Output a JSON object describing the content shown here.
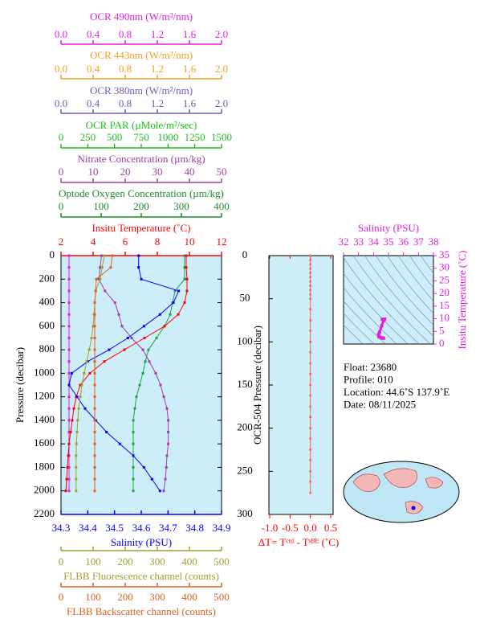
{
  "chart_data": [
    {
      "type": "profile",
      "ylabel": "Pressure (decibar)",
      "ylim": [
        0,
        2200
      ],
      "yticks": [
        0,
        200,
        400,
        600,
        800,
        1000,
        1200,
        1400,
        1600,
        1800,
        2000,
        2200
      ],
      "top_axes": [
        {
          "label": "OCR 490nm (W/m²/nm)",
          "color": "#e020e0",
          "xlim": [
            0,
            2
          ],
          "xticks": [
            {
              "value": 0,
              "label": "0.0"
            },
            0.4,
            0.8,
            1.2,
            1.6,
            {
              "value": 2,
              "label": "2.0"
            }
          ],
          "series": [
            {
              "color": "#e020e0",
              "y": [
                0,
                100,
                200,
                300,
                400,
                500,
                600,
                700,
                800,
                900,
                1000,
                1100,
                1200,
                1300,
                1400,
                1500,
                1600,
                1700,
                1800,
                1900,
                2000
              ],
              "x": [
                0.1,
                0.1,
                0.1,
                0.1,
                0.1,
                0.1,
                0.1,
                0.1,
                0.1,
                0.1,
                0.1,
                0.1,
                0.1,
                0.1,
                0.1,
                0.1,
                0.1,
                0.1,
                0.1,
                0.1,
                0.1
              ]
            }
          ]
        },
        {
          "label": "OCR 443nm (W/m²/nm)",
          "color": "#f0a020",
          "xlim": [
            0,
            2
          ],
          "xticks": [
            {
              "value": 0,
              "label": "0.0"
            },
            0.4,
            0.8,
            1.2,
            1.6,
            {
              "value": 2,
              "label": "2.0"
            }
          ]
        },
        {
          "label": "OCR 380nm (W/m²/nm)",
          "color": "#6060c0",
          "xlim": [
            0,
            2
          ],
          "xticks": [
            {
              "value": 0,
              "label": "0.0"
            },
            0.4,
            0.8,
            1.2,
            1.6,
            {
              "value": 2,
              "label": "2.0"
            }
          ]
        },
        {
          "label": "OCR PAR (µMole/m²/sec)",
          "color": "#20c020",
          "xlim": [
            0,
            1500
          ],
          "xticks": [
            0,
            250,
            500,
            750,
            1000,
            1250,
            1500
          ]
        },
        {
          "label": "Nitrate Concentration (µm/kg)",
          "color": "#a040a0",
          "xlim": [
            0,
            50
          ],
          "xticks": [
            0,
            10,
            20,
            30,
            40,
            50
          ],
          "series": [
            {
              "color": "#a040a0",
              "y": [
                0,
                100,
                200,
                300,
                400,
                500,
                600,
                700,
                800,
                900,
                1000,
                1100,
                1200,
                1300,
                1400,
                1500,
                1600,
                1700,
                1800,
                1900,
                2000
              ],
              "x": [
                12.6,
                12.2,
                11.8,
                13.7,
                16.8,
                18,
                19,
                22,
                25.5,
                27.5,
                29.5,
                31,
                32,
                33,
                33.4,
                33.4,
                33.4,
                33,
                32.8,
                32.5,
                32
              ]
            }
          ]
        },
        {
          "label": "Optode Oxygen Concentration (µm/kg)",
          "color": "#208a30",
          "xlim": [
            0,
            400
          ],
          "xticks": [
            0,
            100,
            200,
            300,
            400
          ],
          "series": [
            {
              "color": "#20a040",
              "y": [
                0,
                100,
                200,
                300,
                400,
                500,
                600,
                700,
                800,
                900,
                1000,
                1100,
                1200,
                1300,
                1400,
                1500,
                1600,
                1700,
                1800,
                1900,
                2000
              ],
              "x": [
                308,
                308,
                308,
                284,
                278,
                272,
                258,
                238,
                218,
                210,
                204,
                196,
                188,
                184,
                180,
                180,
                180,
                180,
                180,
                180,
                180
              ]
            }
          ]
        },
        {
          "label": "Insitu Temperature (˚C)",
          "color": "#ff0000",
          "xlim": [
            2,
            12
          ],
          "xticks": [
            2,
            4,
            6,
            8,
            10,
            12
          ],
          "series": [
            {
              "color": "#ff0000",
              "y": [
                0,
                100,
                200,
                300,
                400,
                500,
                600,
                700,
                800,
                900,
                1000,
                1100,
                1200,
                1300,
                1400,
                1500,
                1600,
                1700,
                1800,
                1900,
                2000
              ],
              "x": [
                9.8,
                9.8,
                9.85,
                9.85,
                9.7,
                9.3,
                8.45,
                7.2,
                5.95,
                4.7,
                3.8,
                3.2,
                2.95,
                2.8,
                2.7,
                2.6,
                2.5,
                2.45,
                2.4,
                2.35,
                2.3
              ]
            }
          ]
        }
      ],
      "bottom_axes": [
        {
          "label": "Salinity (PSU)",
          "color": "#0000ff",
          "xlim": [
            34.3,
            34.9
          ],
          "xticks": [
            34.3,
            34.4,
            34.5,
            34.6,
            34.7,
            34.8,
            34.9
          ],
          "series": [
            {
              "color": "#0000ff",
              "y": [
                0,
                100,
                200,
                300,
                400,
                500,
                600,
                700,
                800,
                900,
                1000,
                1100,
                1200,
                1300,
                1400,
                1500,
                1600,
                1700,
                1800,
                1900,
                2000
              ],
              "x": [
                34.59,
                34.59,
                34.6,
                34.74,
                34.72,
                34.67,
                34.61,
                34.55,
                34.48,
                34.4,
                34.34,
                34.33,
                34.36,
                34.39,
                34.43,
                34.47,
                34.52,
                34.57,
                34.61,
                34.64,
                34.67
              ]
            }
          ]
        },
        {
          "label": "FLBB Fluorescence channel (counts)",
          "color": "#a0a030",
          "xlim": [
            0,
            500
          ],
          "xticks": [
            0,
            100,
            200,
            300,
            400,
            500
          ],
          "series": [
            {
              "color": "#a0a030",
              "y": [
                0,
                100,
                200,
                300,
                400,
                500,
                600,
                700,
                800,
                900,
                1000,
                1100,
                1200,
                1300,
                1400,
                1500,
                1600,
                1700,
                1800,
                1900,
                2000
              ],
              "x": [
                135,
                128,
                122,
                108,
                105,
                103,
                100,
                95,
                88,
                80,
                72,
                65,
                60,
                55,
                52,
                50,
                48,
                47,
                47,
                47,
                47
              ]
            }
          ]
        },
        {
          "label": "FLBB Backscatter channel (counts)",
          "color": "#e06020",
          "xlim": [
            0,
            500
          ],
          "xticks": [
            0,
            100,
            200,
            300,
            400,
            500
          ],
          "series": [
            {
              "color": "#e06020",
              "y": [
                0,
                100,
                200,
                300,
                400,
                500,
                600,
                700,
                800,
                900,
                1000,
                1100,
                1200,
                1300,
                1400,
                1500,
                1600,
                1700,
                1800,
                1900,
                2000
              ],
              "x": [
                160,
                155,
                110,
                108,
                105,
                105,
                105,
                105,
                105,
                105,
                105,
                105,
                105,
                105,
                105,
                105,
                105,
                105,
                105,
                105,
                105
              ]
            }
          ]
        }
      ]
    },
    {
      "type": "delta",
      "xlabel": "ΔT= Tᶜᵗᵈ - Tˢᴮᴱ (˚C)",
      "ylabel": "OCR-504 Pressure (decibar)",
      "color": "#ff0000",
      "xlim": [
        -1,
        0.5
      ],
      "xticks": [
        {
          "value": -1,
          "label": "-1.0"
        },
        -0.5,
        {
          "value": 0,
          "label": "0.0"
        },
        0.5
      ],
      "ylim": [
        0,
        300
      ],
      "yticks": [
        0,
        50,
        100,
        150,
        200,
        250,
        300
      ],
      "series": [
        {
          "color": "#ff6060",
          "y": [
            0,
            5,
            10,
            15,
            20,
            25,
            30,
            35,
            40,
            45,
            50,
            62,
            75,
            87,
            100,
            112,
            125,
            137,
            150,
            162,
            175,
            187,
            200,
            212,
            225,
            237,
            250,
            262,
            275
          ],
          "x": [
            0,
            0,
            0,
            0,
            0,
            0,
            0,
            0,
            0,
            0,
            0,
            0,
            0,
            0,
            0,
            0,
            0,
            0,
            0,
            0,
            0,
            0,
            0,
            0,
            0,
            0,
            0,
            0,
            0
          ]
        }
      ]
    },
    {
      "type": "ts",
      "xlabel": "Salinity (PSU)",
      "ylabel": "Insitu Temperature (˚C)",
      "color": "#e020e0",
      "xlim": [
        32,
        38
      ],
      "xticks": [
        32,
        33,
        34,
        35,
        36,
        37,
        38
      ],
      "ylim": [
        0,
        35
      ],
      "yticks": [
        0,
        5,
        10,
        15,
        20,
        25,
        30,
        35
      ],
      "series": [
        {
          "color": "#e020e0",
          "x": [
            34.59,
            34.74,
            34.67,
            34.55,
            34.4,
            34.34,
            34.36,
            34.43,
            34.52,
            34.61,
            34.67
          ],
          "y": [
            9.8,
            9.85,
            9.3,
            7.2,
            4.7,
            3.8,
            2.95,
            2.7,
            2.5,
            2.4,
            2.3
          ]
        }
      ]
    }
  ],
  "float_info": [
    "Float:  23680",
    "Profile:  010",
    "Location:  44.6˚S  137.9˚E",
    "Date:  08/11/2025"
  ]
}
